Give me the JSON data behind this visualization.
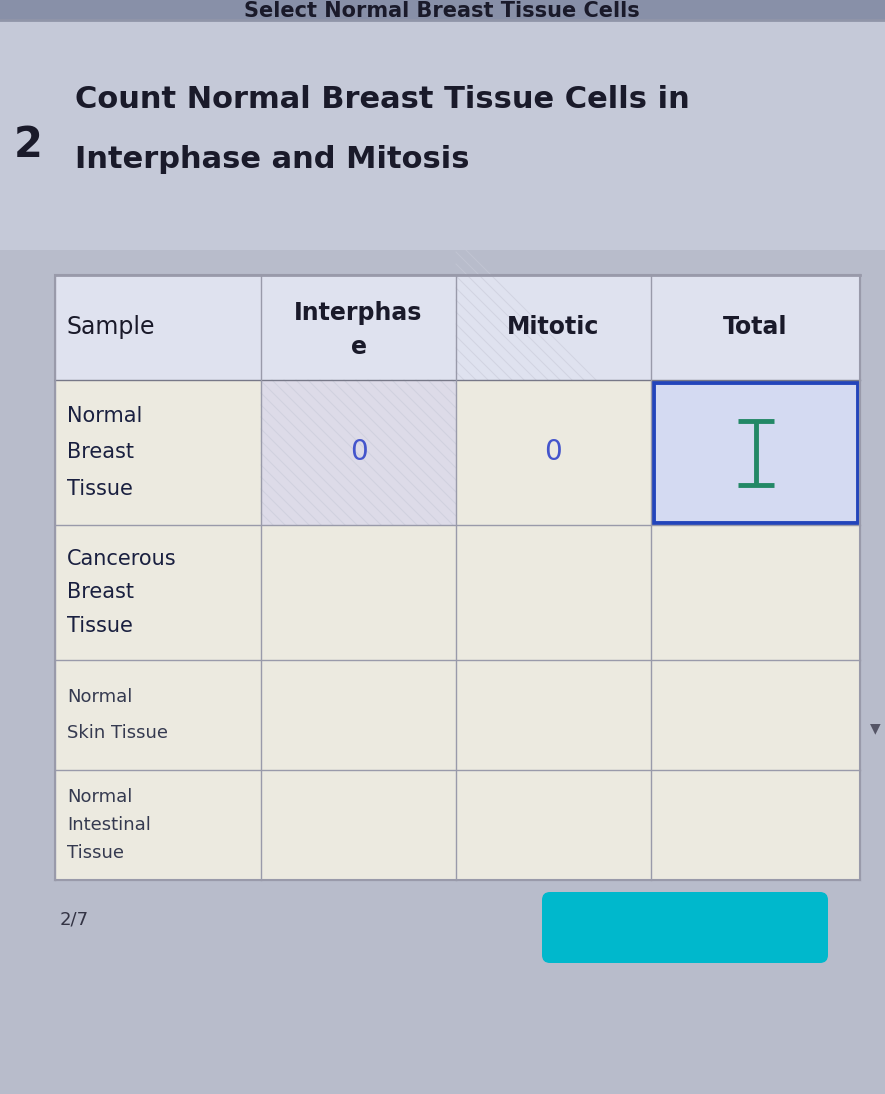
{
  "title_number": "2",
  "title_line1": "Count Normal Breast Tissue Cells in",
  "title_line2": "Interphase and Mitosis",
  "header_bg": "#c5c9d8",
  "page_bg": "#b8bccb",
  "table_bg_light": "#eceef5",
  "table_bg_cream": "#e8e6dc",
  "col_headers": [
    "Sample",
    "Interphas\ne",
    "Mitotic",
    "Total"
  ],
  "row_labels": [
    [
      "Normal",
      "Breast",
      "Tissue"
    ],
    [
      "Cancerous",
      "Breast",
      "Tissue"
    ],
    [
      "Normal",
      "Skin Tissue",
      ""
    ],
    [
      "Normal",
      "Intestinal",
      "Tissue"
    ]
  ],
  "row_values": [
    [
      "0",
      "0"
    ],
    [
      "",
      ""
    ],
    [
      "",
      ""
    ],
    [
      "",
      ""
    ]
  ],
  "highlighted_cell_row": 0,
  "highlighted_cell_col": 3,
  "highlight_border_color": "#2244bb",
  "highlight_bg": "#d4daf2",
  "cursor_color_outer": "#228866",
  "cursor_color_inner": "#88ddcc",
  "zero_color": "#4455cc",
  "title_color": "#1a1a2a",
  "header_text_color": "#1a1a2a",
  "row_text_color_dark": "#1a2040",
  "row_text_color_light": "#353a50",
  "top_bar_bg": "#8890a8",
  "top_bar_text": "Select Normal Breast Tissue Cells",
  "bottom_text": "2/7",
  "footer_btn_color": "#00b8cc",
  "table_border_color": "#999aaa",
  "header_sep_color": "#777888",
  "hatching_color": "#d0d2de"
}
